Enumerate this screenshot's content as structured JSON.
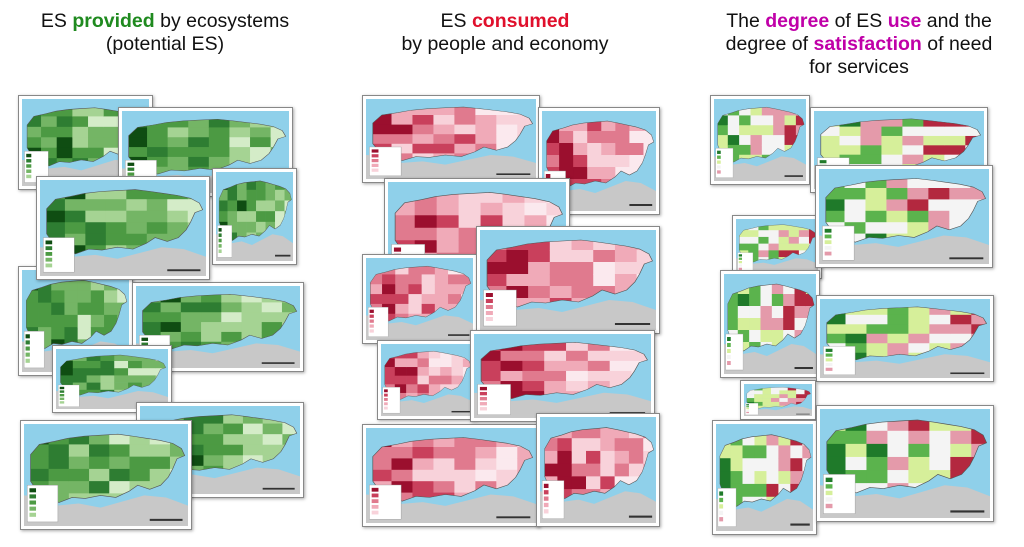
{
  "columns": [
    {
      "title_line1_pre": "ES ",
      "title_line1_key": "provided",
      "title_line1_post": " by ecosystems",
      "title_line2": "(potential ES)",
      "accent": "#1f8a1f",
      "palette": [
        "#0f4d12",
        "#2e7d32",
        "#4c9a43",
        "#74b565",
        "#a5d393",
        "#d4ecc8"
      ]
    },
    {
      "title_line1_pre": "ES ",
      "title_line1_key": "consumed",
      "title_line1_post": "",
      "title_line2": "by people and economy",
      "accent": "#e0102c",
      "palette": [
        "#9b0f2e",
        "#c9405c",
        "#e07a8e",
        "#f0aab8",
        "#f8d2da",
        "#fbe9ee"
      ]
    },
    {
      "title_line1_pre": "The ",
      "title_line1_key": "degree",
      "title_line1_mid": " of ES ",
      "title_line1_key2": "use",
      "title_line1_post": " and the",
      "title_line2_pre": "degree of ",
      "title_line2_key": "satisfaction",
      "title_line2_post": " of need",
      "title_line3": "for services",
      "accent": "#c000a8",
      "palette": [
        "#1f7a2a",
        "#5bb34d",
        "#d6ef9a",
        "#f4f4f4",
        "#e49aaa",
        "#b3283f"
      ]
    }
  ],
  "colors": {
    "sea": "#8fd0ea",
    "foreign_land": "#c8c8c8",
    "card_border": "#888888"
  }
}
